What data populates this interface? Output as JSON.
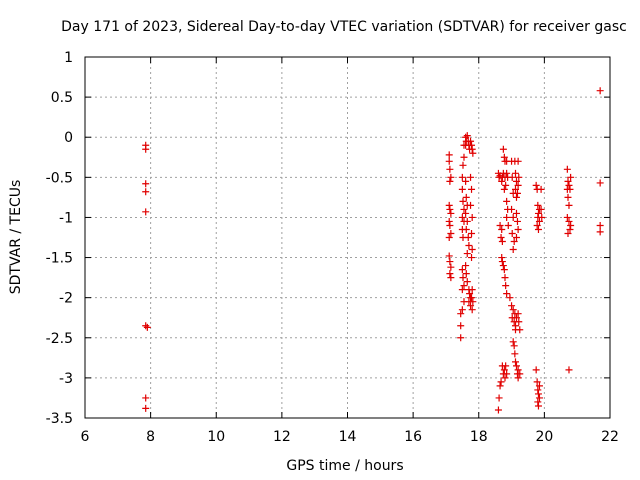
{
  "chart_data": {
    "type": "scatter",
    "title": "Day 171 of 2023, Sidereal Day-to-day VTEC variation (SDTVAR) for receiver gasc",
    "xlabel": "GPS time / hours",
    "ylabel": "SDTVAR / TECUs",
    "xlim": [
      6,
      22
    ],
    "ylim": [
      -3.5,
      1
    ],
    "x_ticks": [
      6,
      8,
      10,
      12,
      14,
      16,
      18,
      20,
      22
    ],
    "x_tick_labels": [
      "6",
      "8",
      "10",
      "12",
      "14",
      "16",
      "18",
      "20",
      "22"
    ],
    "y_ticks": [
      1,
      0.5,
      0,
      -0.5,
      -1,
      -1.5,
      -2,
      -2.5,
      -3,
      -3.5
    ],
    "y_tick_labels": [
      "1",
      "0.5",
      "0",
      "-0.5",
      "-1",
      "-1.5",
      "-2",
      "-2.5",
      "-3",
      "-3.5"
    ],
    "grid": true,
    "marker": "+",
    "color": "#e00000",
    "series": [
      {
        "name": "SDTVAR",
        "points": [
          [
            7.85,
            -0.1
          ],
          [
            7.85,
            -0.15
          ],
          [
            7.85,
            -0.58
          ],
          [
            7.85,
            -0.68
          ],
          [
            7.85,
            -0.93
          ],
          [
            7.85,
            -2.35
          ],
          [
            7.9,
            -2.37
          ],
          [
            7.85,
            -3.25
          ],
          [
            7.85,
            -3.38
          ],
          [
            17.1,
            -0.22
          ],
          [
            17.1,
            -0.3
          ],
          [
            17.12,
            -0.4
          ],
          [
            17.15,
            -0.5
          ],
          [
            17.12,
            -0.55
          ],
          [
            17.1,
            -0.85
          ],
          [
            17.12,
            -0.9
          ],
          [
            17.15,
            -0.95
          ],
          [
            17.1,
            -1.05
          ],
          [
            17.12,
            -1.1
          ],
          [
            17.15,
            -1.2
          ],
          [
            17.1,
            -1.25
          ],
          [
            17.1,
            -1.48
          ],
          [
            17.12,
            -1.55
          ],
          [
            17.15,
            -1.62
          ],
          [
            17.12,
            -1.7
          ],
          [
            17.15,
            -1.75
          ],
          [
            17.45,
            -2.2
          ],
          [
            17.45,
            -2.35
          ],
          [
            17.45,
            -2.5
          ],
          [
            17.5,
            -1.65
          ],
          [
            17.52,
            -1.75
          ],
          [
            17.55,
            -1.85
          ],
          [
            17.5,
            -1.9
          ],
          [
            17.55,
            -2.05
          ],
          [
            17.5,
            -2.15
          ],
          [
            17.5,
            -0.5
          ],
          [
            17.5,
            -0.65
          ],
          [
            17.52,
            -0.8
          ],
          [
            17.55,
            -0.9
          ],
          [
            17.5,
            -1.0
          ],
          [
            17.55,
            -1.05
          ],
          [
            17.5,
            -1.15
          ],
          [
            17.52,
            -1.25
          ],
          [
            17.55,
            -0.1
          ],
          [
            17.55,
            -0.25
          ],
          [
            17.52,
            -0.35
          ],
          [
            17.6,
            0.0
          ],
          [
            17.62,
            -0.05
          ],
          [
            17.6,
            -0.1
          ],
          [
            17.65,
            0.02
          ],
          [
            17.68,
            -0.05
          ],
          [
            17.7,
            -0.1
          ],
          [
            17.72,
            -0.15
          ],
          [
            17.6,
            -0.55
          ],
          [
            17.62,
            -0.75
          ],
          [
            17.65,
            -0.85
          ],
          [
            17.6,
            -0.95
          ],
          [
            17.65,
            -1.05
          ],
          [
            17.62,
            -1.15
          ],
          [
            17.68,
            -1.25
          ],
          [
            17.7,
            -1.35
          ],
          [
            17.65,
            -1.45
          ],
          [
            17.6,
            -1.6
          ],
          [
            17.62,
            -1.7
          ],
          [
            17.65,
            -1.8
          ],
          [
            17.7,
            -1.9
          ],
          [
            17.72,
            -1.95
          ],
          [
            17.75,
            -2.0
          ],
          [
            17.7,
            -2.05
          ],
          [
            17.75,
            -2.1
          ],
          [
            17.8,
            -2.15
          ],
          [
            17.78,
            -2.0
          ],
          [
            17.8,
            -1.9
          ],
          [
            17.82,
            -2.05
          ],
          [
            17.75,
            -0.05
          ],
          [
            17.78,
            -0.1
          ],
          [
            17.8,
            -0.15
          ],
          [
            17.82,
            -0.2
          ],
          [
            17.75,
            -0.5
          ],
          [
            17.78,
            -0.65
          ],
          [
            17.75,
            -0.85
          ],
          [
            17.8,
            -1.0
          ],
          [
            17.78,
            -1.2
          ],
          [
            17.8,
            -1.4
          ],
          [
            17.78,
            -1.5
          ],
          [
            18.6,
            -0.45
          ],
          [
            18.62,
            -0.5
          ],
          [
            18.65,
            -0.48
          ],
          [
            18.7,
            -0.55
          ],
          [
            18.72,
            -0.5
          ],
          [
            18.75,
            -0.45
          ],
          [
            18.8,
            -0.5
          ],
          [
            18.82,
            -0.6
          ],
          [
            18.78,
            -0.65
          ],
          [
            18.65,
            -1.1
          ],
          [
            18.7,
            -1.15
          ],
          [
            18.68,
            -1.25
          ],
          [
            18.72,
            -1.3
          ],
          [
            18.7,
            -1.5
          ],
          [
            18.72,
            -1.55
          ],
          [
            18.75,
            -1.6
          ],
          [
            18.78,
            -1.65
          ],
          [
            18.8,
            -1.75
          ],
          [
            18.82,
            -1.85
          ],
          [
            18.85,
            -1.95
          ],
          [
            18.65,
            -3.1
          ],
          [
            18.62,
            -3.25
          ],
          [
            18.6,
            -3.4
          ],
          [
            18.68,
            -3.05
          ],
          [
            18.72,
            -2.85
          ],
          [
            18.75,
            -2.95
          ],
          [
            18.78,
            -2.9
          ],
          [
            18.8,
            -3.0
          ],
          [
            18.82,
            -2.85
          ],
          [
            18.85,
            -2.95
          ],
          [
            18.75,
            -0.15
          ],
          [
            18.78,
            -0.25
          ],
          [
            18.8,
            -0.3
          ],
          [
            18.85,
            -0.3
          ],
          [
            18.85,
            -0.45
          ],
          [
            18.88,
            -0.5
          ],
          [
            18.85,
            -0.8
          ],
          [
            18.88,
            -0.9
          ],
          [
            18.85,
            -1.0
          ],
          [
            18.9,
            -1.1
          ],
          [
            19.0,
            -0.3
          ],
          [
            19.02,
            -0.5
          ],
          [
            19.05,
            -0.7
          ],
          [
            19.0,
            -0.9
          ],
          [
            19.05,
            -1.0
          ],
          [
            19.02,
            -1.2
          ],
          [
            19.08,
            -1.3
          ],
          [
            19.05,
            -1.4
          ],
          [
            18.95,
            -2.0
          ],
          [
            19.0,
            -2.1
          ],
          [
            19.05,
            -2.15
          ],
          [
            19.02,
            -2.25
          ],
          [
            19.08,
            -2.3
          ],
          [
            19.1,
            -2.2
          ],
          [
            19.12,
            -2.35
          ],
          [
            19.15,
            -2.25
          ],
          [
            19.12,
            -2.4
          ],
          [
            19.05,
            -2.55
          ],
          [
            19.08,
            -2.6
          ],
          [
            19.1,
            -2.7
          ],
          [
            19.12,
            -2.8
          ],
          [
            19.15,
            -2.85
          ],
          [
            19.18,
            -2.95
          ],
          [
            19.2,
            -3.0
          ],
          [
            19.1,
            -0.3
          ],
          [
            19.12,
            -0.45
          ],
          [
            19.15,
            -0.55
          ],
          [
            19.12,
            -0.65
          ],
          [
            19.15,
            -0.75
          ],
          [
            19.18,
            -0.7
          ],
          [
            19.2,
            -0.6
          ],
          [
            19.22,
            -0.5
          ],
          [
            19.2,
            -0.3
          ],
          [
            19.15,
            -0.95
          ],
          [
            19.18,
            -1.05
          ],
          [
            19.2,
            -1.15
          ],
          [
            19.15,
            -1.25
          ],
          [
            19.2,
            -2.2
          ],
          [
            19.22,
            -2.3
          ],
          [
            19.25,
            -2.4
          ],
          [
            19.2,
            -2.9
          ],
          [
            19.25,
            -2.95
          ],
          [
            19.75,
            -0.6
          ],
          [
            19.78,
            -0.65
          ],
          [
            19.8,
            -0.85
          ],
          [
            19.82,
            -0.95
          ],
          [
            19.85,
            -0.9
          ],
          [
            19.8,
            -1.0
          ],
          [
            19.85,
            -1.05
          ],
          [
            19.82,
            -1.15
          ],
          [
            19.78,
            -1.1
          ],
          [
            19.75,
            -2.9
          ],
          [
            19.78,
            -3.05
          ],
          [
            19.8,
            -3.15
          ],
          [
            19.82,
            -3.2
          ],
          [
            19.85,
            -3.25
          ],
          [
            19.8,
            -3.3
          ],
          [
            19.82,
            -3.35
          ],
          [
            19.85,
            -3.1
          ],
          [
            19.9,
            -0.65
          ],
          [
            19.9,
            -0.9
          ],
          [
            19.92,
            -1.0
          ],
          [
            20.7,
            -0.4
          ],
          [
            20.72,
            -0.55
          ],
          [
            20.75,
            -0.6
          ],
          [
            20.7,
            -0.65
          ],
          [
            20.72,
            -0.75
          ],
          [
            20.78,
            -0.65
          ],
          [
            20.8,
            -0.5
          ],
          [
            20.75,
            -0.85
          ],
          [
            20.7,
            -1.0
          ],
          [
            20.75,
            -1.05
          ],
          [
            20.8,
            -1.1
          ],
          [
            20.78,
            -1.15
          ],
          [
            20.72,
            -1.2
          ],
          [
            20.75,
            -2.9
          ],
          [
            21.7,
            0.58
          ],
          [
            21.7,
            -0.57
          ],
          [
            21.7,
            -1.1
          ],
          [
            21.7,
            -1.18
          ]
        ]
      }
    ]
  }
}
